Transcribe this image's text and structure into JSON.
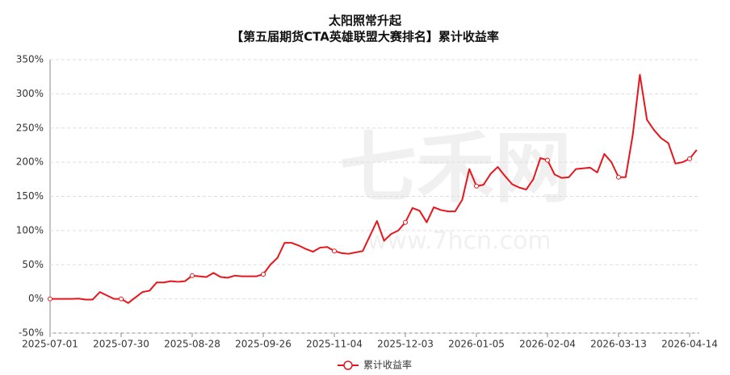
{
  "chart_data": {
    "type": "line",
    "title": "太阳照常升起",
    "subtitle": "【第五届期货CTA英雄联盟大赛排名】累计收益率",
    "watermark": "七禾网",
    "watermark_url": "www.7hcn.com",
    "categories": [
      "2025-07-01",
      null,
      null,
      null,
      null,
      null,
      null,
      null,
      null,
      null,
      "2025-07-30",
      null,
      null,
      null,
      null,
      null,
      null,
      null,
      null,
      null,
      "2025-08-28",
      null,
      null,
      null,
      null,
      null,
      null,
      null,
      null,
      null,
      "2025-09-26",
      null,
      null,
      null,
      null,
      null,
      null,
      null,
      null,
      null,
      "2025-11-04",
      null,
      null,
      null,
      null,
      null,
      null,
      null,
      null,
      null,
      "2025-12-03",
      null,
      null,
      null,
      null,
      null,
      null,
      null,
      null,
      null,
      "2026-01-05",
      null,
      null,
      null,
      null,
      null,
      null,
      null,
      null,
      null,
      "2026-02-04",
      null,
      null,
      null,
      null,
      null,
      null,
      null,
      null,
      null,
      "2026-03-13",
      null,
      null,
      null,
      null,
      null,
      null,
      null,
      null,
      null,
      "2026-04-14",
      null
    ],
    "series": [
      {
        "name": "累计收益率",
        "color": "#e8161c",
        "values": [
          0,
          0,
          0,
          0,
          0.5,
          -1,
          -1,
          10,
          5,
          0,
          0,
          -6,
          2,
          10,
          12,
          24,
          24,
          26,
          25,
          26,
          34,
          33,
          32,
          38,
          32,
          31,
          34,
          33,
          33,
          33,
          36,
          50,
          60,
          82,
          82,
          78,
          73,
          69,
          75,
          76,
          70,
          67,
          66,
          68,
          70,
          92,
          114,
          85,
          95,
          100,
          112,
          133,
          129,
          112,
          134,
          130,
          128,
          128,
          145,
          190,
          165,
          167,
          183,
          193,
          180,
          168,
          163,
          160,
          175,
          206,
          203,
          182,
          177,
          178,
          190,
          191,
          192,
          185,
          212,
          200,
          178,
          178,
          240,
          328,
          262,
          247,
          235,
          228,
          198,
          200,
          205,
          218
        ]
      }
    ],
    "ylim": [
      -50,
      350
    ],
    "yticks": [
      {
        "value": -50,
        "label": "-50%"
      },
      {
        "value": 0,
        "label": "0%"
      },
      {
        "value": 50,
        "label": "50%"
      },
      {
        "value": 100,
        "label": "100%"
      },
      {
        "value": 150,
        "label": "150%"
      },
      {
        "value": 200,
        "label": "200%"
      },
      {
        "value": 250,
        "label": "250%"
      },
      {
        "value": 300,
        "label": "300%"
      },
      {
        "value": 350,
        "label": "350%"
      }
    ],
    "grid": true
  }
}
